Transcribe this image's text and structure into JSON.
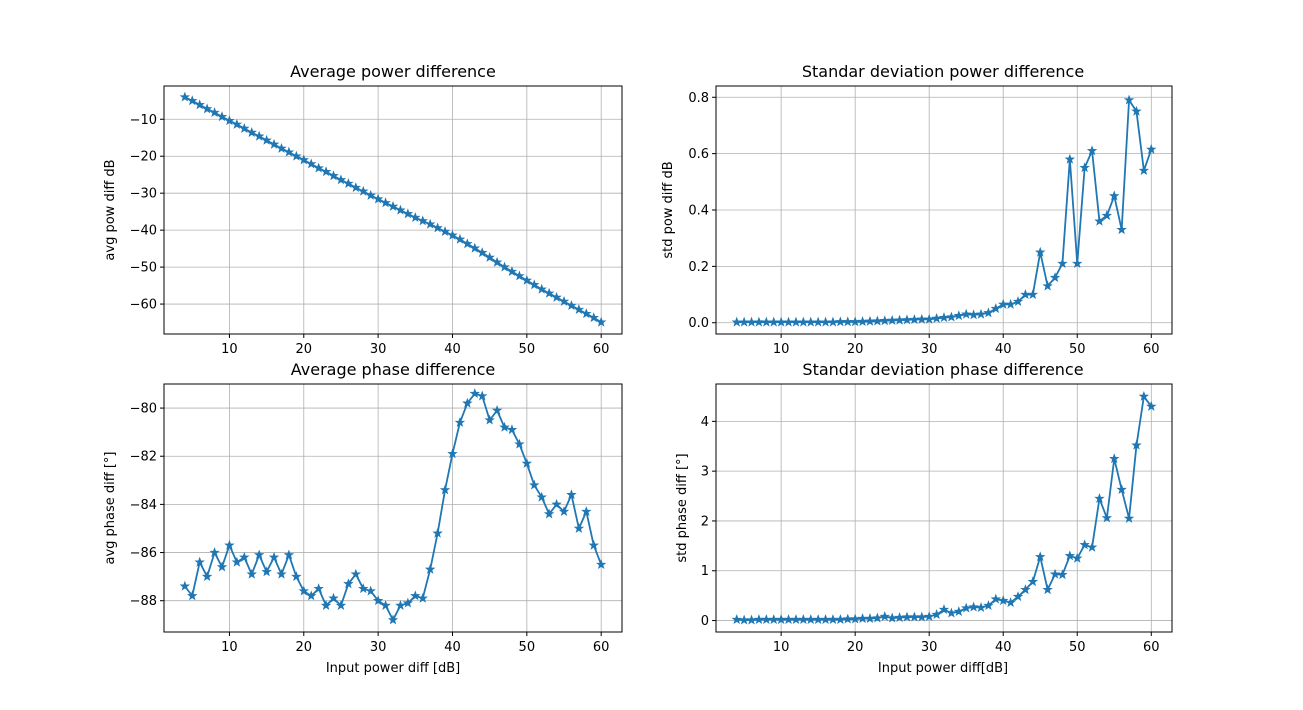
{
  "chart_data": [
    {
      "type": "line",
      "title": "Average power difference",
      "xlabel": "",
      "ylabel": "avg pow diff dB",
      "xlim": [
        1.2,
        62.8
      ],
      "ylim": [
        -68.1,
        -1.0
      ],
      "xticks": [
        10,
        20,
        30,
        40,
        50,
        60
      ],
      "yticks": [
        -60,
        -50,
        -40,
        -30,
        -20,
        -10
      ],
      "ytick_labels": [
        "−60",
        "−50",
        "−40",
        "−30",
        "−20",
        "−10"
      ],
      "grid": true,
      "color": "#1f77b4",
      "marker": "star",
      "x": [
        4,
        5,
        6,
        7,
        8,
        9,
        10,
        11,
        12,
        13,
        14,
        15,
        16,
        17,
        18,
        19,
        20,
        21,
        22,
        23,
        24,
        25,
        26,
        27,
        28,
        29,
        30,
        31,
        32,
        33,
        34,
        35,
        36,
        37,
        38,
        39,
        40,
        41,
        42,
        43,
        44,
        45,
        46,
        47,
        48,
        49,
        50,
        51,
        52,
        53,
        54,
        55,
        56,
        57,
        58,
        59,
        60
      ],
      "y": [
        -4.0,
        -5.0,
        -6.1,
        -7.2,
        -8.2,
        -9.3,
        -10.4,
        -11.4,
        -12.5,
        -13.6,
        -14.6,
        -15.7,
        -16.8,
        -17.9,
        -18.9,
        -20.0,
        -21.0,
        -22.1,
        -23.2,
        -24.2,
        -25.3,
        -26.4,
        -27.4,
        -28.5,
        -29.5,
        -30.6,
        -31.6,
        -32.6,
        -33.6,
        -34.6,
        -35.6,
        -36.6,
        -37.5,
        -38.4,
        -39.4,
        -40.4,
        -41.4,
        -42.5,
        -43.7,
        -44.9,
        -46.1,
        -47.4,
        -48.7,
        -50.0,
        -51.2,
        -52.4,
        -53.6,
        -54.8,
        -56.0,
        -57.1,
        -58.2,
        -59.3,
        -60.4,
        -61.5,
        -62.6,
        -63.7,
        -64.9
      ]
    },
    {
      "type": "line",
      "title": "Standar deviation power difference",
      "xlabel": "",
      "ylabel": "std pow diff dB",
      "xlim": [
        1.2,
        62.8
      ],
      "ylim": [
        -0.04,
        0.84
      ],
      "xticks": [
        10,
        20,
        30,
        40,
        50,
        60
      ],
      "yticks": [
        0.0,
        0.2,
        0.4,
        0.6,
        0.8
      ],
      "ytick_labels": [
        "0.0",
        "0.2",
        "0.4",
        "0.6",
        "0.8"
      ],
      "grid": true,
      "color": "#1f77b4",
      "marker": "star",
      "x": [
        4,
        5,
        6,
        7,
        8,
        9,
        10,
        11,
        12,
        13,
        14,
        15,
        16,
        17,
        18,
        19,
        20,
        21,
        22,
        23,
        24,
        25,
        26,
        27,
        28,
        29,
        30,
        31,
        32,
        33,
        34,
        35,
        36,
        37,
        38,
        39,
        40,
        41,
        42,
        43,
        44,
        45,
        46,
        47,
        48,
        49,
        50,
        51,
        52,
        53,
        54,
        55,
        56,
        57,
        58,
        59,
        60
      ],
      "y": [
        0.002,
        0.002,
        0.002,
        0.002,
        0.002,
        0.002,
        0.002,
        0.002,
        0.002,
        0.002,
        0.002,
        0.002,
        0.002,
        0.002,
        0.003,
        0.003,
        0.003,
        0.004,
        0.005,
        0.006,
        0.007,
        0.008,
        0.009,
        0.01,
        0.011,
        0.012,
        0.012,
        0.015,
        0.018,
        0.02,
        0.025,
        0.03,
        0.028,
        0.03,
        0.035,
        0.05,
        0.065,
        0.065,
        0.075,
        0.1,
        0.1,
        0.25,
        0.13,
        0.16,
        0.21,
        0.58,
        0.21,
        0.55,
        0.61,
        0.36,
        0.38,
        0.45,
        0.33,
        0.79,
        0.75,
        0.54,
        0.615
      ]
    },
    {
      "type": "line",
      "title": "Average phase difference",
      "xlabel": "Input power diff [dB]",
      "ylabel": "avg phase diff [°]",
      "xlim": [
        1.2,
        62.8
      ],
      "ylim": [
        -89.3,
        -79.0
      ],
      "xticks": [
        10,
        20,
        30,
        40,
        50,
        60
      ],
      "yticks": [
        -88,
        -86,
        -84,
        -82,
        -80
      ],
      "ytick_labels": [
        "−88",
        "−86",
        "−84",
        "−82",
        "−80"
      ],
      "grid": true,
      "color": "#1f77b4",
      "marker": "star",
      "x": [
        4,
        5,
        6,
        7,
        8,
        9,
        10,
        11,
        12,
        13,
        14,
        15,
        16,
        17,
        18,
        19,
        20,
        21,
        22,
        23,
        24,
        25,
        26,
        27,
        28,
        29,
        30,
        31,
        32,
        33,
        34,
        35,
        36,
        37,
        38,
        39,
        40,
        41,
        42,
        43,
        44,
        45,
        46,
        47,
        48,
        49,
        50,
        51,
        52,
        53,
        54,
        55,
        56,
        57,
        58,
        59,
        60
      ],
      "y": [
        -87.4,
        -87.8,
        -86.4,
        -87.0,
        -86.0,
        -86.6,
        -85.7,
        -86.4,
        -86.2,
        -86.9,
        -86.1,
        -86.8,
        -86.2,
        -86.9,
        -86.1,
        -87.0,
        -87.6,
        -87.8,
        -87.5,
        -88.2,
        -87.9,
        -88.2,
        -87.3,
        -86.9,
        -87.5,
        -87.6,
        -88.0,
        -88.2,
        -88.8,
        -88.2,
        -88.1,
        -87.8,
        -87.9,
        -86.7,
        -85.2,
        -83.4,
        -81.9,
        -80.6,
        -79.8,
        -79.4,
        -79.5,
        -80.5,
        -80.1,
        -80.8,
        -80.9,
        -81.5,
        -82.3,
        -83.2,
        -83.7,
        -84.4,
        -84.0,
        -84.3,
        -83.6,
        -85.0,
        -84.3,
        -85.7,
        -86.5
      ]
    },
    {
      "type": "line",
      "title": "Standar deviation phase difference",
      "xlabel": "Input power diff[dB]",
      "ylabel": "std phase diff [°]",
      "xlim": [
        1.2,
        62.8
      ],
      "ylim": [
        -0.23,
        4.75
      ],
      "xticks": [
        10,
        20,
        30,
        40,
        50,
        60
      ],
      "yticks": [
        0,
        1,
        2,
        3,
        4
      ],
      "ytick_labels": [
        "0",
        "1",
        "2",
        "3",
        "4"
      ],
      "grid": true,
      "color": "#1f77b4",
      "marker": "star",
      "x": [
        4,
        5,
        6,
        7,
        8,
        9,
        10,
        11,
        12,
        13,
        14,
        15,
        16,
        17,
        18,
        19,
        20,
        21,
        22,
        23,
        24,
        25,
        26,
        27,
        28,
        29,
        30,
        31,
        32,
        33,
        34,
        35,
        36,
        37,
        38,
        39,
        40,
        41,
        42,
        43,
        44,
        45,
        46,
        47,
        48,
        49,
        50,
        51,
        52,
        53,
        54,
        55,
        56,
        57,
        58,
        59,
        60
      ],
      "y": [
        0.02,
        0.01,
        0.01,
        0.02,
        0.02,
        0.02,
        0.02,
        0.02,
        0.02,
        0.02,
        0.02,
        0.02,
        0.02,
        0.02,
        0.02,
        0.03,
        0.03,
        0.04,
        0.04,
        0.05,
        0.08,
        0.05,
        0.06,
        0.07,
        0.07,
        0.07,
        0.08,
        0.12,
        0.22,
        0.15,
        0.18,
        0.25,
        0.27,
        0.26,
        0.3,
        0.43,
        0.4,
        0.36,
        0.48,
        0.62,
        0.78,
        1.28,
        0.62,
        0.93,
        0.92,
        1.3,
        1.25,
        1.52,
        1.47,
        2.45,
        2.06,
        3.25,
        2.63,
        2.05,
        3.52,
        4.5,
        4.3
      ]
    }
  ]
}
